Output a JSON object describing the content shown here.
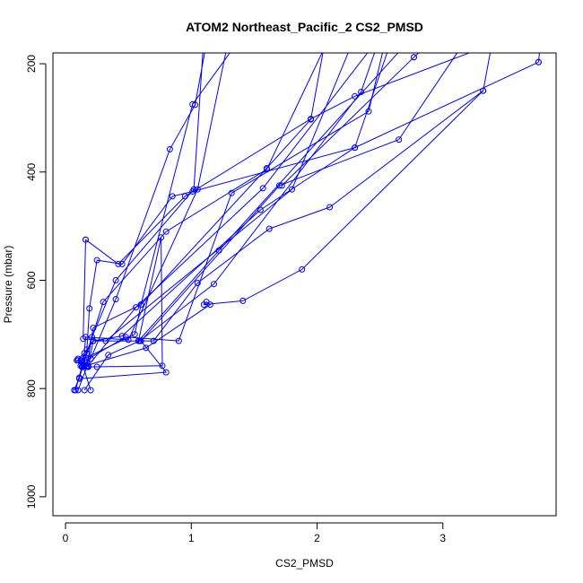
{
  "chart_data": {
    "type": "scatter",
    "title": "ATOM2 Northeast_Pacific_2 CS2_PMSD",
    "xlabel": "CS2_PMSD",
    "ylabel": "Pressure (mbar)",
    "xlim": [
      -0.1,
      3.9
    ],
    "ylim": [
      1035,
      180
    ],
    "y_reversed": true,
    "x_ticks": [
      0,
      1,
      2,
      3
    ],
    "y_ticks": [
      200,
      400,
      600,
      800,
      1000
    ],
    "series_color": "#0000ff",
    "marker": "open-circle",
    "profiles": [
      {
        "x": [
          3.76,
          3.78
        ],
        "y": [
          197,
          150
        ]
      },
      {
        "x": [
          1.72,
          2.77
        ],
        "y": [
          425,
          188
        ]
      },
      {
        "x": [
          2.77,
          2.95
        ],
        "y": [
          188,
          150
        ]
      },
      {
        "x": [
          0.12,
          0.15,
          0.17,
          0.19,
          0.25,
          0.45,
          0.85,
          1.01,
          2.3,
          3.76
        ],
        "y": [
          758,
          748,
          728,
          652,
          563,
          570,
          445,
          436,
          355,
          197
        ]
      },
      {
        "x": [
          0.1,
          0.15,
          0.22,
          0.45,
          1.55,
          2.3,
          2.6
        ],
        "y": [
          745,
          735,
          712,
          703,
          470,
          355,
          150
        ]
      },
      {
        "x": [
          0.08,
          0.13,
          0.2,
          0.4,
          0.83,
          1.03,
          1.13
        ],
        "y": [
          803,
          760,
          745,
          635,
          358,
          276,
          150
        ]
      },
      {
        "x": [
          0.1,
          0.17,
          0.22,
          0.6,
          1.6,
          1.95,
          2.07
        ],
        "y": [
          803,
          760,
          688,
          645,
          393,
          303,
          150
        ]
      },
      {
        "x": [
          0.15,
          0.34,
          0.59,
          1.18,
          2.35,
          2.5
        ],
        "y": [
          803,
          738,
          712,
          607,
          252,
          150
        ]
      },
      {
        "x": [
          0.2,
          0.13,
          0.48,
          0.9,
          1.32,
          2.41,
          2.55
        ],
        "y": [
          803,
          752,
          705,
          712,
          439,
          288,
          150
        ]
      },
      {
        "x": [
          0.18,
          0.25,
          0.77,
          0.76,
          0.58,
          1.22,
          2.76
        ],
        "y": [
          760,
          760,
          758,
          521,
          712,
          545,
          150
        ]
      },
      {
        "x": [
          0.11,
          0.8,
          0.6,
          1.7,
          2.65,
          3.2
        ],
        "y": [
          782,
          770,
          712,
          425,
          340,
          150
        ]
      },
      {
        "x": [
          0.09,
          0.18,
          0.22,
          0.7,
          1.05,
          1.62,
          2.1,
          3.32,
          3.4
        ],
        "y": [
          748,
          760,
          712,
          712,
          605,
          505,
          465,
          250,
          150
        ]
      },
      {
        "x": [
          0.13,
          0.64,
          1.15,
          1.12,
          1.1,
          1.41,
          1.88,
          3.32
        ],
        "y": [
          760,
          725,
          645,
          640,
          645,
          638,
          580,
          250
        ]
      },
      {
        "x": [
          0.16,
          0.14,
          0.32,
          1.8,
          2.3
        ],
        "y": [
          525,
          708,
          712,
          432,
          150
        ]
      },
      {
        "x": [
          0.16,
          0.42,
          0.95,
          1.95,
          2.3,
          3.55
        ],
        "y": [
          525,
          570,
          445,
          302,
          260,
          150
        ]
      },
      {
        "x": [
          0.2,
          0.14,
          0.18,
          0.56,
          1.57,
          2.5
        ],
        "y": [
          745,
          755,
          758,
          650,
          430,
          150
        ]
      },
      {
        "x": [
          0.14,
          0.16,
          0.5,
          1.05,
          1.3
        ],
        "y": [
          758,
          705,
          710,
          432,
          150
        ]
      },
      {
        "x": [
          0.14,
          0.12,
          0.55,
          0.6,
          1.01,
          1.4
        ],
        "y": [
          760,
          748,
          700,
          645,
          275,
          150
        ]
      },
      {
        "x": [
          0.1,
          0.17,
          0.3,
          0.8,
          1.6,
          2.1
        ],
        "y": [
          748,
          735,
          640,
          510,
          395,
          150
        ]
      },
      {
        "x": [
          0.07,
          0.11,
          0.21,
          0.4,
          1.02,
          1.1
        ],
        "y": [
          803,
          780,
          705,
          600,
          432,
          150
        ]
      }
    ]
  }
}
